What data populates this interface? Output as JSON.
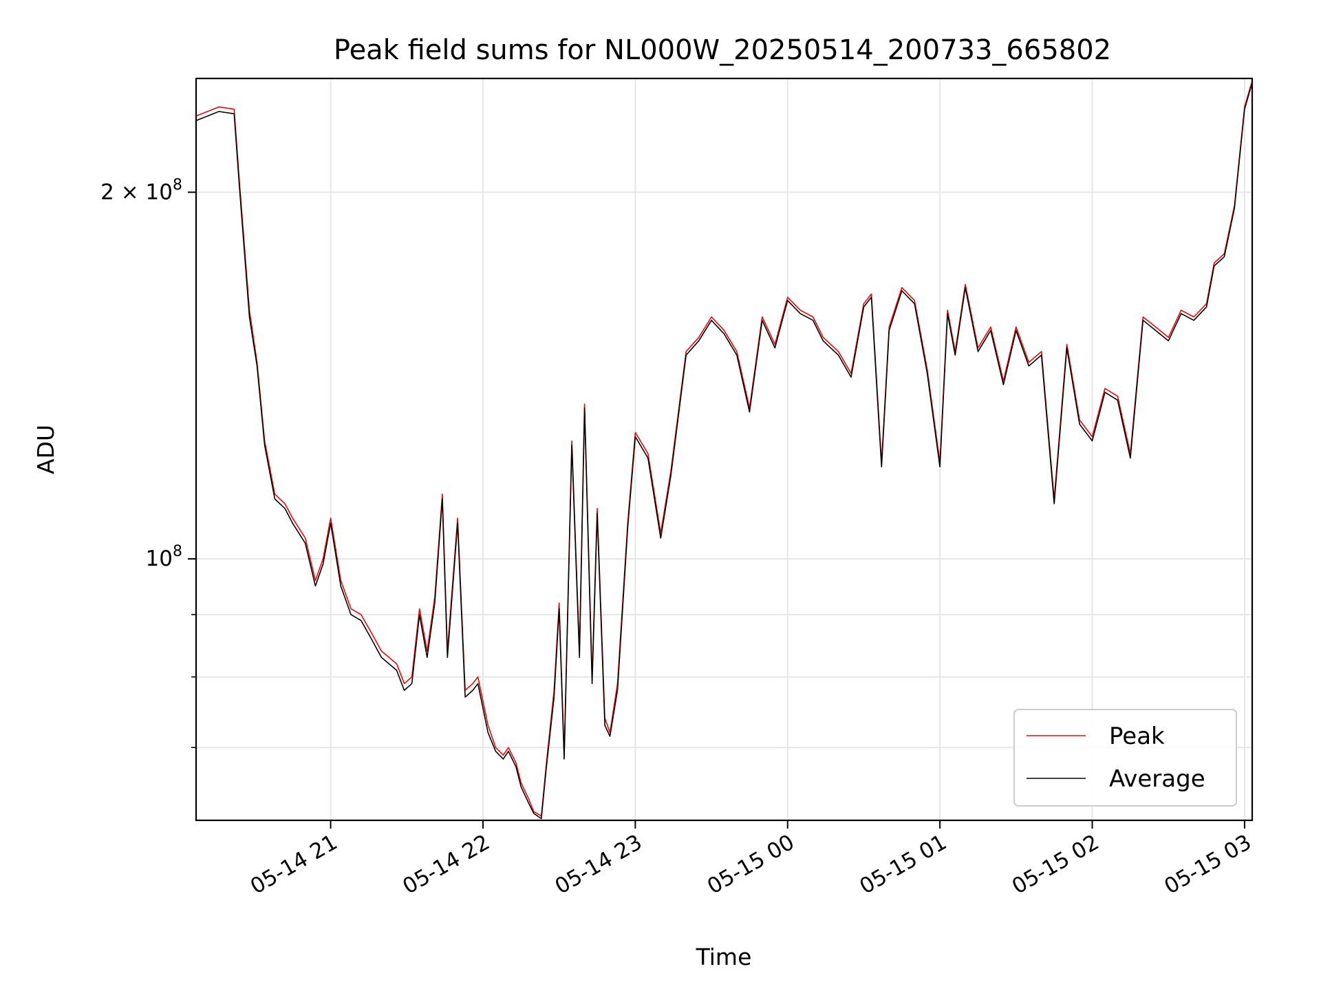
{
  "chart_data": {
    "type": "line",
    "title": "Peak field sums for NL000W_20250514_200733_665802",
    "xlabel": "Time",
    "ylabel": "ADU",
    "yscale": "log",
    "ylim": [
      61000000,
      248000000
    ],
    "xlim": [
      "2025-05-14 20:07",
      "2025-05-15 03:03"
    ],
    "grid": true,
    "legend": "lower-right",
    "x_ticks": [
      {
        "t": "2025-05-14 21:00",
        "label": "05-14 21"
      },
      {
        "t": "2025-05-14 22:00",
        "label": "05-14 22"
      },
      {
        "t": "2025-05-14 23:00",
        "label": "05-14 23"
      },
      {
        "t": "2025-05-15 00:00",
        "label": "05-15 00"
      },
      {
        "t": "2025-05-15 01:00",
        "label": "05-15 01"
      },
      {
        "t": "2025-05-15 02:00",
        "label": "05-15 02"
      },
      {
        "t": "2025-05-15 03:00",
        "label": "05-15 03"
      }
    ],
    "y_major_ticks": [
      {
        "value": 100000000,
        "base": "10",
        "exp": "8",
        "coef": ""
      },
      {
        "value": 200000000,
        "base": "10",
        "exp": "8",
        "coef": "2 × "
      }
    ],
    "y_minor_ticks": [
      70000000,
      80000000,
      90000000
    ],
    "x": [
      "2025-05-14 20:07",
      "2025-05-14 20:16",
      "2025-05-14 20:22",
      "2025-05-14 20:24",
      "2025-05-14 20:28",
      "2025-05-14 20:31",
      "2025-05-14 20:34",
      "2025-05-14 20:38",
      "2025-05-14 20:42",
      "2025-05-14 20:45",
      "2025-05-14 20:50",
      "2025-05-14 20:54",
      "2025-05-14 20:57",
      "2025-05-14 21:00",
      "2025-05-14 21:04",
      "2025-05-14 21:08",
      "2025-05-14 21:12",
      "2025-05-14 21:16",
      "2025-05-14 21:20",
      "2025-05-14 21:23",
      "2025-05-14 21:26",
      "2025-05-14 21:29",
      "2025-05-14 21:32",
      "2025-05-14 21:35",
      "2025-05-14 21:38",
      "2025-05-14 21:41",
      "2025-05-14 21:44",
      "2025-05-14 21:46",
      "2025-05-14 21:50",
      "2025-05-14 21:53",
      "2025-05-14 21:56",
      "2025-05-14 21:58",
      "2025-05-14 22:02",
      "2025-05-14 22:05",
      "2025-05-14 22:08",
      "2025-05-14 22:10",
      "2025-05-14 22:13",
      "2025-05-14 22:15",
      "2025-05-14 22:18",
      "2025-05-14 22:20",
      "2025-05-14 22:23",
      "2025-05-14 22:25",
      "2025-05-14 22:28",
      "2025-05-14 22:30",
      "2025-05-14 22:32",
      "2025-05-14 22:35",
      "2025-05-14 22:38",
      "2025-05-14 22:40",
      "2025-05-14 22:43",
      "2025-05-14 22:45",
      "2025-05-14 22:48",
      "2025-05-14 22:50",
      "2025-05-14 22:53",
      "2025-05-14 22:57",
      "2025-05-14 23:00",
      "2025-05-14 23:05",
      "2025-05-14 23:10",
      "2025-05-14 23:14",
      "2025-05-14 23:20",
      "2025-05-14 23:25",
      "2025-05-14 23:30",
      "2025-05-14 23:35",
      "2025-05-14 23:40",
      "2025-05-14 23:45",
      "2025-05-14 23:50",
      "2025-05-14 23:55",
      "2025-05-15 00:00",
      "2025-05-15 00:05",
      "2025-05-15 00:10",
      "2025-05-15 00:14",
      "2025-05-15 00:20",
      "2025-05-15 00:25",
      "2025-05-15 00:30",
      "2025-05-15 00:33",
      "2025-05-15 00:37",
      "2025-05-15 00:40",
      "2025-05-15 00:45",
      "2025-05-15 00:50",
      "2025-05-15 00:55",
      "2025-05-15 01:00",
      "2025-05-15 01:03",
      "2025-05-15 01:06",
      "2025-05-15 01:10",
      "2025-05-15 01:15",
      "2025-05-15 01:20",
      "2025-05-15 01:25",
      "2025-05-15 01:30",
      "2025-05-15 01:35",
      "2025-05-15 01:40",
      "2025-05-15 01:45",
      "2025-05-15 01:50",
      "2025-05-15 01:55",
      "2025-05-15 02:00",
      "2025-05-15 02:05",
      "2025-05-15 02:10",
      "2025-05-15 02:15",
      "2025-05-15 02:20",
      "2025-05-15 02:25",
      "2025-05-15 02:30",
      "2025-05-15 02:35",
      "2025-05-15 02:40",
      "2025-05-15 02:45",
      "2025-05-15 02:48",
      "2025-05-15 02:52",
      "2025-05-15 02:56",
      "2025-05-15 03:00",
      "2025-05-15 03:03"
    ],
    "series": [
      {
        "name": "Peak",
        "color": "#ff0000",
        "values": [
          231000000,
          235000000,
          234000000,
          205000000,
          160000000,
          145000000,
          125000000,
          113000000,
          111000000,
          108000000,
          104000000,
          96000000,
          100000000,
          108000000,
          96000000,
          91000000,
          90000000,
          87000000,
          84000000,
          83000000,
          82000000,
          79000000,
          80000000,
          91000000,
          84000000,
          93000000,
          113000000,
          84000000,
          108000000,
          78000000,
          79000000,
          80000000,
          73000000,
          70000000,
          69000000,
          70000000,
          68000000,
          65500000,
          63500000,
          62000000,
          61500000,
          68000000,
          78000000,
          92000000,
          69000000,
          125000000,
          84000000,
          134000000,
          80000000,
          110000000,
          74000000,
          72000000,
          79000000,
          107000000,
          127000000,
          122000000,
          105000000,
          118000000,
          148000000,
          152000000,
          158000000,
          154000000,
          148000000,
          133000000,
          158000000,
          150000000,
          164000000,
          160000000,
          158000000,
          152000000,
          148000000,
          142000000,
          162000000,
          165000000,
          120000000,
          155000000,
          167000000,
          163000000,
          143000000,
          120000000,
          160000000,
          148000000,
          168000000,
          149000000,
          155000000,
          140000000,
          155000000,
          145000000,
          148000000,
          112000000,
          150000000,
          130000000,
          126000000,
          138000000,
          136000000,
          122000000,
          158000000,
          155000000,
          152000000,
          160000000,
          158000000,
          162000000,
          175000000,
          178000000,
          195000000,
          235000000,
          247000000
        ]
      },
      {
        "name": "Average",
        "color": "#000000",
        "values": [
          229000000,
          233000000,
          232000000,
          203000000,
          158000000,
          144000000,
          124000000,
          112000000,
          110000000,
          107000000,
          103000000,
          95000000,
          99000000,
          107000000,
          95000000,
          90000000,
          89000000,
          86000000,
          83000000,
          82000000,
          81000000,
          78000000,
          79000000,
          90000000,
          83000000,
          92000000,
          112000000,
          83000000,
          107000000,
          77000000,
          78000000,
          79000000,
          72000000,
          69500000,
          68500000,
          69500000,
          67500000,
          65000000,
          63000000,
          61800000,
          61200000,
          67500000,
          77000000,
          91000000,
          68500000,
          124000000,
          83000000,
          133000000,
          79000000,
          109000000,
          73000000,
          71500000,
          78000000,
          106000000,
          126000000,
          121000000,
          104000000,
          117000000,
          147000000,
          151000000,
          157000000,
          153000000,
          147000000,
          132000000,
          157000000,
          149000000,
          163000000,
          159000000,
          157000000,
          151000000,
          147000000,
          141000000,
          161000000,
          164000000,
          119000000,
          154000000,
          166000000,
          162000000,
          142000000,
          119000000,
          159000000,
          147000000,
          167000000,
          148000000,
          154000000,
          139000000,
          154000000,
          144000000,
          147000000,
          111000000,
          149000000,
          129000000,
          125000000,
          137000000,
          135000000,
          121000000,
          157000000,
          154000000,
          151000000,
          159000000,
          157000000,
          161000000,
          174000000,
          177000000,
          194000000,
          234000000,
          246000000
        ]
      }
    ]
  }
}
